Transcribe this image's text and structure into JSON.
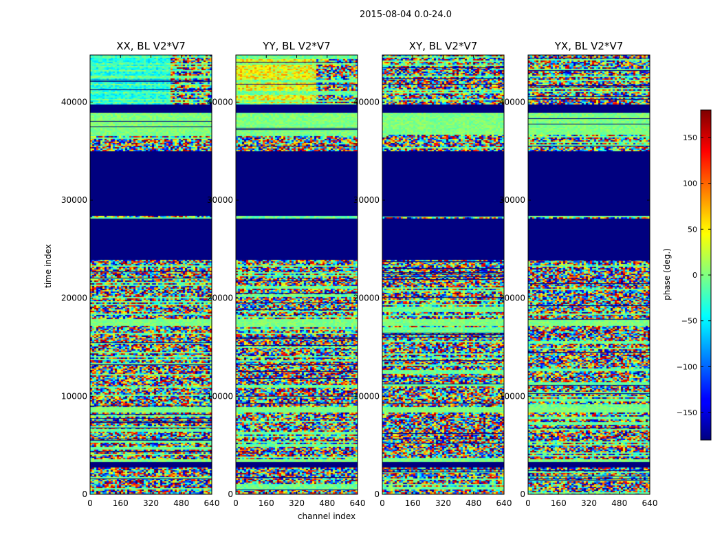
{
  "chart_data": {
    "type": "heatmap",
    "suptitle": "2015-08-04 0.0-24.0",
    "xlabel": "channel index",
    "ylabel": "time index",
    "xlim": [
      0,
      640
    ],
    "ylim": [
      0,
      44800
    ],
    "x_ticks": [
      0,
      160,
      320,
      480,
      640
    ],
    "y_ticks": [
      0,
      10000,
      20000,
      30000,
      40000
    ],
    "y_tick_labels": [
      "0",
      "10000",
      "20000",
      "30000",
      "40000"
    ],
    "colormap": "jet",
    "colorbar": {
      "label": "phase (deg.)",
      "range": [
        -180,
        180
      ],
      "ticks": [
        -150,
        -100,
        -50,
        0,
        50,
        100,
        150
      ],
      "tick_labels": [
        "−150",
        "−100",
        "−50",
        "0",
        "50",
        "100",
        "150"
      ]
    },
    "panels": [
      {
        "title": "XX, BL V2*V7",
        "key": "XX"
      },
      {
        "title": "YY, BL V2*V7",
        "key": "YY"
      },
      {
        "title": "XY, BL V2*V7",
        "key": "XY"
      },
      {
        "title": "YX, BL V2*V7",
        "key": "YX"
      }
    ],
    "flagged_time_ranges": [
      [
        28500,
        35000
      ],
      [
        24000,
        28200
      ],
      [
        39000,
        39800
      ],
      [
        2800,
        3300
      ]
    ],
    "uniform_time_ranges": [
      [
        36800,
        39000
      ],
      [
        17200,
        17900
      ],
      [
        8400,
        9000
      ],
      [
        3300,
        3700
      ]
    ]
  }
}
